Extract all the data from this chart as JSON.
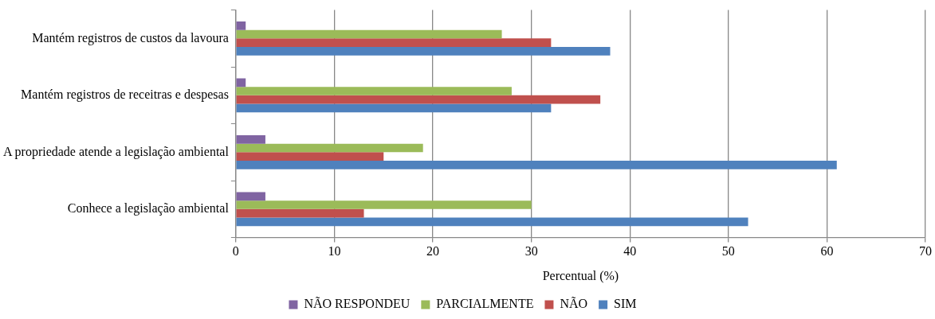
{
  "chart_data": {
    "type": "bar",
    "orientation": "horizontal",
    "categories": [
      "Mantém registros de custos da lavoura",
      "Mantém registros de receitras e despesas",
      "A propriedade atende a legislação ambiental",
      "Conhece a legislação ambiental"
    ],
    "series": [
      {
        "name": "NÃO RESPONDEU",
        "color": "#8064a2",
        "values": [
          1,
          1,
          3,
          3
        ]
      },
      {
        "name": "PARCIALMENTE",
        "color": "#9bbb59",
        "values": [
          27,
          28,
          19,
          30
        ]
      },
      {
        "name": "NÃO",
        "color": "#c0504d",
        "values": [
          32,
          37,
          15,
          13
        ]
      },
      {
        "name": "SIM",
        "color": "#4f81bd",
        "values": [
          38,
          32,
          61,
          52
        ]
      }
    ],
    "xlabel": "Percentual (%)",
    "xlim": [
      0,
      70
    ],
    "xticks": [
      0,
      10,
      20,
      30,
      40,
      50,
      60,
      70
    ],
    "grid": "x",
    "legend": "bottom"
  }
}
